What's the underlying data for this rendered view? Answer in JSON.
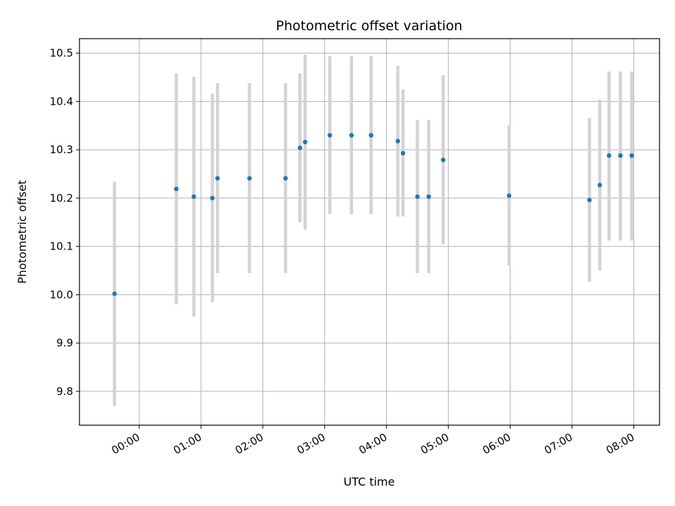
{
  "chart_data": {
    "type": "scatter",
    "title": "Photometric offset variation",
    "xlabel": "UTC time",
    "ylabel": "Photometric offset",
    "xlim_minutes": [
      -58,
      505
    ],
    "ylim": [
      9.73,
      10.53
    ],
    "x_ticks": [
      {
        "value": 0,
        "label": "00:00"
      },
      {
        "value": 60,
        "label": "01:00"
      },
      {
        "value": 120,
        "label": "02:00"
      },
      {
        "value": 180,
        "label": "03:00"
      },
      {
        "value": 240,
        "label": "04:00"
      },
      {
        "value": 300,
        "label": "05:00"
      },
      {
        "value": 360,
        "label": "06:00"
      },
      {
        "value": 420,
        "label": "07:00"
      },
      {
        "value": 480,
        "label": "08:00"
      }
    ],
    "y_ticks": [
      9.8,
      9.9,
      10.0,
      10.1,
      10.2,
      10.3,
      10.4,
      10.5
    ],
    "grid": true,
    "marker_color": "#1f77b4",
    "errorbar_color": "#d3d3d3",
    "points": [
      {
        "t": "23:36",
        "y": 10.002,
        "lo": 9.77,
        "hi": 10.234
      },
      {
        "t": "00:36",
        "y": 10.219,
        "lo": 9.98,
        "hi": 10.458
      },
      {
        "t": "00:53",
        "y": 10.203,
        "lo": 9.955,
        "hi": 10.451
      },
      {
        "t": "01:11",
        "y": 10.2,
        "lo": 9.985,
        "hi": 10.416
      },
      {
        "t": "01:16",
        "y": 10.241,
        "lo": 10.045,
        "hi": 10.438
      },
      {
        "t": "01:47",
        "y": 10.241,
        "lo": 10.045,
        "hi": 10.438
      },
      {
        "t": "02:22",
        "y": 10.241,
        "lo": 10.045,
        "hi": 10.438
      },
      {
        "t": "02:36",
        "y": 10.304,
        "lo": 10.15,
        "hi": 10.458
      },
      {
        "t": "02:41",
        "y": 10.316,
        "lo": 10.135,
        "hi": 10.497
      },
      {
        "t": "03:05",
        "y": 10.33,
        "lo": 10.167,
        "hi": 10.494
      },
      {
        "t": "03:26",
        "y": 10.33,
        "lo": 10.167,
        "hi": 10.494
      },
      {
        "t": "03:45",
        "y": 10.33,
        "lo": 10.167,
        "hi": 10.494
      },
      {
        "t": "04:11",
        "y": 10.318,
        "lo": 10.162,
        "hi": 10.474
      },
      {
        "t": "04:16",
        "y": 10.293,
        "lo": 10.162,
        "hi": 10.425
      },
      {
        "t": "04:30",
        "y": 10.203,
        "lo": 10.045,
        "hi": 10.362
      },
      {
        "t": "04:41",
        "y": 10.203,
        "lo": 10.045,
        "hi": 10.362
      },
      {
        "t": "04:55",
        "y": 10.279,
        "lo": 10.104,
        "hi": 10.454
      },
      {
        "t": "05:59",
        "y": 10.205,
        "lo": 10.06,
        "hi": 10.351
      },
      {
        "t": "07:17",
        "y": 10.196,
        "lo": 10.027,
        "hi": 10.366
      },
      {
        "t": "07:27",
        "y": 10.227,
        "lo": 10.05,
        "hi": 10.404
      },
      {
        "t": "07:36",
        "y": 10.288,
        "lo": 10.112,
        "hi": 10.462
      },
      {
        "t": "07:47",
        "y": 10.288,
        "lo": 10.112,
        "hi": 10.462
      },
      {
        "t": "07:58",
        "y": 10.288,
        "lo": 10.112,
        "hi": 10.462
      }
    ]
  }
}
